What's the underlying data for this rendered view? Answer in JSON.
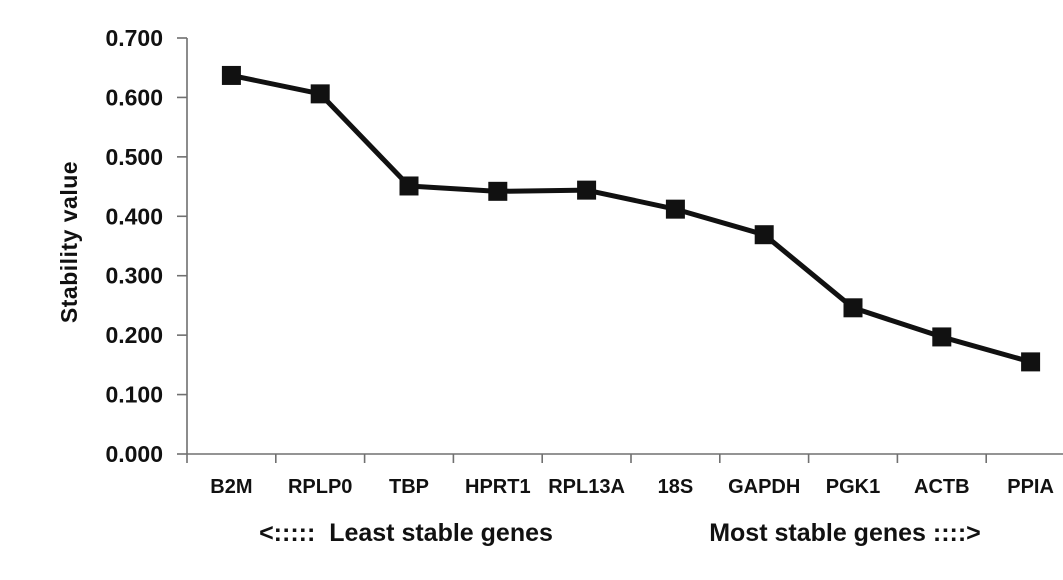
{
  "figure": {
    "background": "#ffffff"
  },
  "chart_data": {
    "type": "line",
    "ylabel": "Stability value",
    "xlabel": "",
    "categories": [
      "B2M",
      "RPLP0",
      "TBP",
      "HPRT1",
      "RPL13A",
      "18S",
      "GAPDH",
      "PGK1",
      "ACTB",
      "PPIA"
    ],
    "values": [
      0.637,
      0.606,
      0.451,
      0.442,
      0.444,
      0.412,
      0.369,
      0.246,
      0.197,
      0.155
    ],
    "ylim": [
      0.0,
      0.7
    ],
    "ytick_step": 0.1,
    "ytick_decimals": 3,
    "ytick_labels": [
      "0.000",
      "0.100",
      "0.200",
      "0.300",
      "0.400",
      "0.500",
      "0.600",
      "0.700"
    ],
    "grid": false,
    "legend": "none",
    "marker_shape": "square",
    "series_color": "#111111",
    "axis_color": "#707070",
    "text_color": "#111111",
    "annotations": {
      "left": "<:::::  Least stable genes",
      "right": "Most stable genes ::::>"
    }
  }
}
